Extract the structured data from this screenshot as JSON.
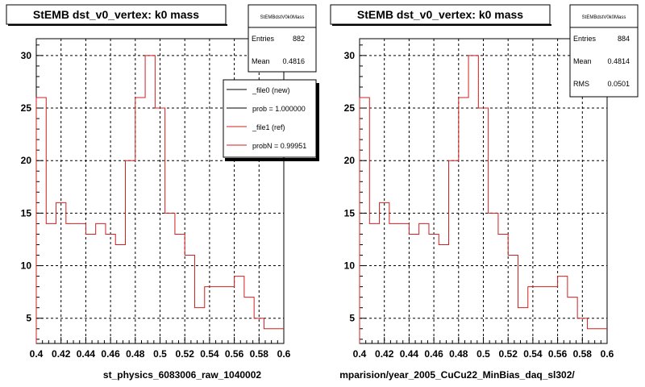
{
  "canvas": {
    "background": "#ffffff",
    "hist_color": "#d21f1f",
    "grid_color": "#000000"
  },
  "footer_text": "",
  "panels": [
    {
      "title": "StEMB dst_v0_vertex: k0 mass",
      "xlabel": "st_physics_6083006_raw_1040002",
      "stats": {
        "title": "StEMBdstV0k0Mass",
        "rows": [
          {
            "label": "Entries",
            "value": "882"
          },
          {
            "label": "Mean",
            "value": "0.4816"
          }
        ]
      },
      "legend": [
        {
          "label": "_file0 (new)",
          "color": "#000000"
        },
        {
          "label": "prob = 1.000000",
          "color": "#000000"
        },
        {
          "label": "_file1 (ref)",
          "color": "#d21f1f"
        },
        {
          "label": "probN = 0.99951",
          "color": "#d21f1f"
        }
      ]
    },
    {
      "title": "StEMB dst_v0_vertex: k0 mass",
      "xlabel": "mparision/year_2005_CuCu22_MinBias_daq_sl302/",
      "stats": {
        "title": "StEMBdstV0k0Mass",
        "rows": [
          {
            "label": "Entries",
            "value": "884"
          },
          {
            "label": "Mean",
            "value": "0.4814"
          },
          {
            "label": "RMS",
            "value": "0.0501"
          }
        ]
      },
      "legend": []
    }
  ],
  "chart_data": [
    {
      "type": "bar",
      "title": "StEMB dst_v0_vertex: k0 mass",
      "xlabel": "st_physics_6083006_raw_1040002",
      "ylabel": "",
      "xlim": [
        0.4,
        0.6
      ],
      "ylim": [
        2.6,
        31.6
      ],
      "x_ticks": [
        0.4,
        0.42,
        0.44,
        0.46,
        0.48,
        0.5,
        0.52,
        0.54,
        0.56,
        0.58,
        0.6
      ],
      "y_ticks": [
        5,
        10,
        15,
        20,
        25,
        30
      ],
      "grid": true,
      "bin_edges": [
        0.4,
        0.408,
        0.416,
        0.424,
        0.432,
        0.44,
        0.448,
        0.456,
        0.464,
        0.472,
        0.48,
        0.488,
        0.496,
        0.504,
        0.512,
        0.52,
        0.528,
        0.536,
        0.544,
        0.552,
        0.56,
        0.568,
        0.576,
        0.584,
        0.592,
        0.6
      ],
      "series": [
        {
          "name": "_file1 (ref)",
          "values": [
            26,
            14,
            16,
            14,
            14,
            13,
            14,
            13,
            12,
            20,
            26,
            30,
            25,
            15,
            13,
            11,
            6,
            8,
            8,
            8,
            9,
            7,
            5,
            4,
            4
          ]
        }
      ]
    },
    {
      "type": "bar",
      "title": "StEMB dst_v0_vertex: k0 mass",
      "xlabel": "mparision/year_2005_CuCu22_MinBias_daq_sl302/",
      "ylabel": "",
      "xlim": [
        0.4,
        0.6
      ],
      "ylim": [
        2.6,
        31.6
      ],
      "x_ticks": [
        0.4,
        0.42,
        0.44,
        0.46,
        0.48,
        0.5,
        0.52,
        0.54,
        0.56,
        0.58,
        0.6
      ],
      "y_ticks": [
        5,
        10,
        15,
        20,
        25,
        30
      ],
      "grid": true,
      "bin_edges": [
        0.4,
        0.408,
        0.416,
        0.424,
        0.432,
        0.44,
        0.448,
        0.456,
        0.464,
        0.472,
        0.48,
        0.488,
        0.496,
        0.504,
        0.512,
        0.52,
        0.528,
        0.536,
        0.544,
        0.552,
        0.56,
        0.568,
        0.576,
        0.584,
        0.592,
        0.6
      ],
      "series": [
        {
          "name": "_file1 (ref)",
          "values": [
            26,
            14,
            16,
            14,
            14,
            13,
            14,
            13,
            12,
            20,
            26,
            30,
            25,
            15,
            13,
            11,
            6,
            8,
            8,
            8,
            9,
            7,
            5,
            4,
            4
          ]
        }
      ]
    }
  ]
}
